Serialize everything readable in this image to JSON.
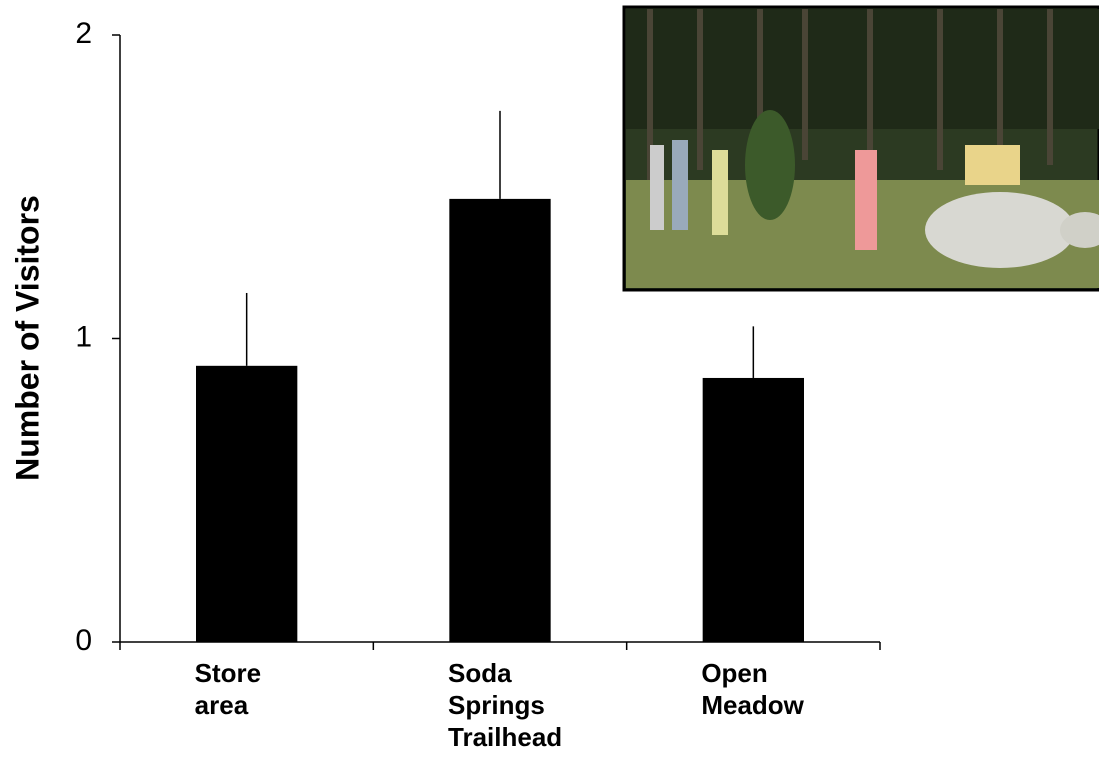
{
  "chart_data": {
    "type": "bar",
    "ylabel": "Number of Visitors",
    "categories": [
      "Store\narea",
      "Soda\nSprings\nTrailhead",
      "Open\nMeadow"
    ],
    "values": [
      0.91,
      1.46,
      0.87
    ],
    "errors": [
      0.24,
      0.29,
      0.17
    ],
    "color": "#000000",
    "ylim": [
      0,
      2
    ],
    "yticks": [
      0,
      1,
      2
    ],
    "grid": false
  }
}
